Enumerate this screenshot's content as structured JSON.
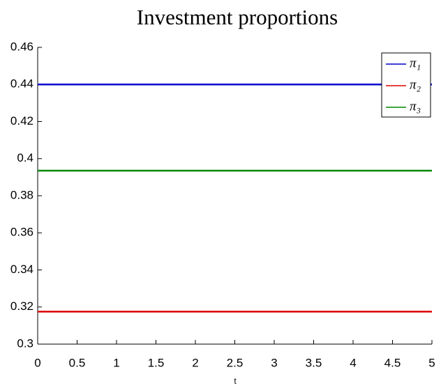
{
  "chart_data": {
    "type": "line",
    "title": "Investment proportions",
    "x_label": "t",
    "series": [
      {
        "name": "π₁",
        "color": "#0000cc",
        "x": [
          0,
          5
        ],
        "values": [
          0.44,
          0.44
        ]
      },
      {
        "name": "π₂",
        "color": "#dd0000",
        "x": [
          0,
          5
        ],
        "values": [
          0.3175,
          0.3175
        ]
      },
      {
        "name": "π₃",
        "color": "#008800",
        "x": [
          0,
          5
        ],
        "values": [
          0.3935,
          0.3935
        ]
      }
    ],
    "xlim": [
      0,
      5
    ],
    "xticks": [
      0,
      0.5,
      1,
      1.5,
      2,
      2.5,
      3,
      3.5,
      4,
      4.5,
      5
    ],
    "ylim": [
      0.3,
      0.46
    ],
    "yticks": [
      0.3,
      0.32,
      0.34,
      0.36,
      0.38,
      0.4,
      0.42,
      0.44,
      0.46
    ],
    "legend": "upper right",
    "grid": false
  }
}
